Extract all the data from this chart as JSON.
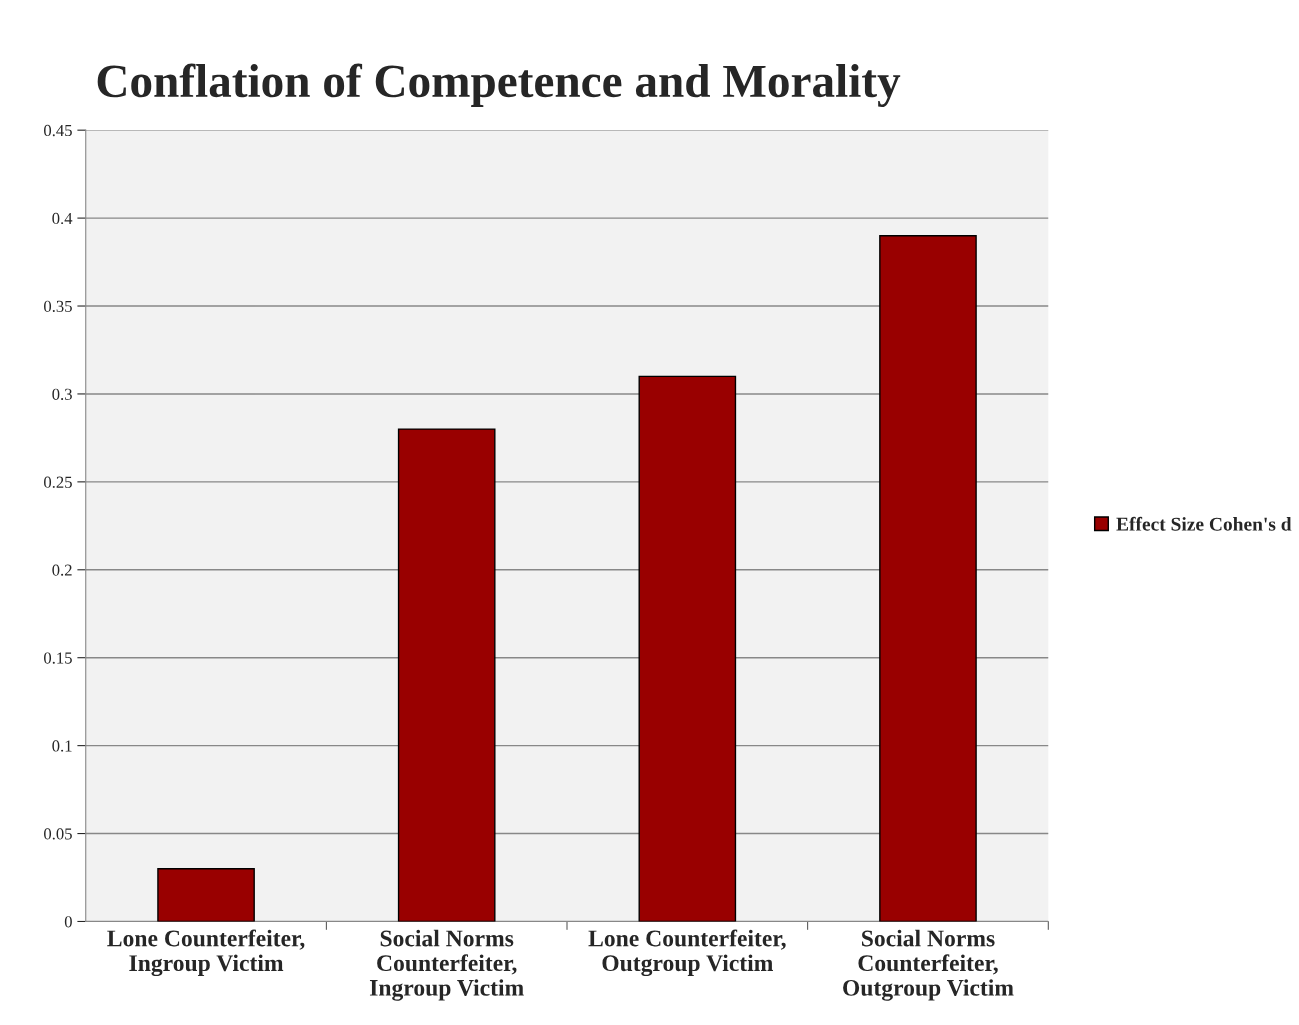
{
  "chart_data": {
    "type": "bar",
    "title": "Conflation of Competence and Morality",
    "categories": [
      "Lone Counterfeiter,\nIngroup Victim",
      "Social Norms\nCounterfeiter,\nIngroup Victim",
      "Lone Counterfeiter,\nOutgroup Victim",
      "Social Norms\nCounterfeiter,\nOutgroup Victim"
    ],
    "series": [
      {
        "name": "Effect Size Cohen's d",
        "color": "#990000",
        "values": [
          0.03,
          0.28,
          0.31,
          0.39
        ]
      }
    ],
    "ylim": [
      0,
      0.45
    ],
    "yticks": [
      0,
      0.05,
      0.1,
      0.15,
      0.2,
      0.25,
      0.3,
      0.35,
      0.4,
      0.45
    ],
    "grid": "y",
    "legend": "right"
  }
}
